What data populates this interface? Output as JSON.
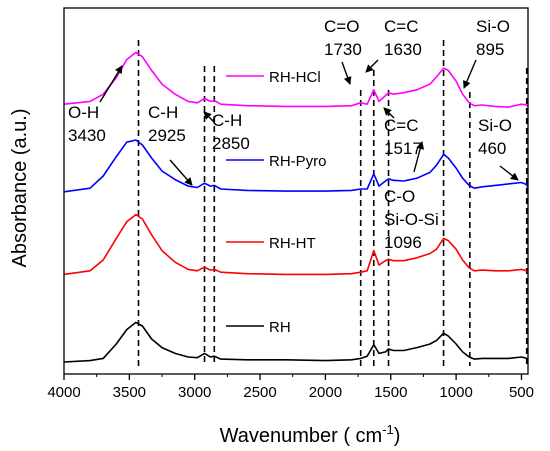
{
  "chart_data": {
    "type": "line",
    "xlabel": "Wavenumber ( cm",
    "xlabel_sup": "-1",
    "xlabel_end": ")",
    "ylabel": "Absorbance (a.u.)",
    "xlim": [
      4000,
      450
    ],
    "x_reversed": true,
    "xticks": [
      "4000",
      "3500",
      "3000",
      "2500",
      "2000",
      "1500",
      "1000",
      "500"
    ],
    "y_ticks_shown": false,
    "grid": false,
    "legend_placement": "inline labels next to each curve",
    "series": [
      {
        "name": "RH-HCl",
        "color": "#ff00ff",
        "offset": 3,
        "points": [
          [
            4000,
            0.08
          ],
          [
            3800,
            0.12
          ],
          [
            3700,
            0.22
          ],
          [
            3600,
            0.45
          ],
          [
            3520,
            0.7
          ],
          [
            3450,
            0.8
          ],
          [
            3400,
            0.74
          ],
          [
            3330,
            0.55
          ],
          [
            3250,
            0.36
          ],
          [
            3150,
            0.22
          ],
          [
            3050,
            0.12
          ],
          [
            2980,
            0.1
          ],
          [
            2925,
            0.16
          ],
          [
            2880,
            0.12
          ],
          [
            2850,
            0.13
          ],
          [
            2800,
            0.08
          ],
          [
            2600,
            0.06
          ],
          [
            2300,
            0.05
          ],
          [
            2000,
            0.05
          ],
          [
            1800,
            0.06
          ],
          [
            1730,
            0.1
          ],
          [
            1680,
            0.08
          ],
          [
            1630,
            0.28
          ],
          [
            1590,
            0.12
          ],
          [
            1540,
            0.2
          ],
          [
            1517,
            0.24
          ],
          [
            1480,
            0.22
          ],
          [
            1400,
            0.24
          ],
          [
            1300,
            0.28
          ],
          [
            1200,
            0.36
          ],
          [
            1150,
            0.46
          ],
          [
            1096,
            0.58
          ],
          [
            1060,
            0.55
          ],
          [
            1000,
            0.4
          ],
          [
            950,
            0.22
          ],
          [
            900,
            0.1
          ],
          [
            860,
            0.06
          ],
          [
            800,
            0.07
          ],
          [
            700,
            0.05
          ],
          [
            600,
            0.04
          ],
          [
            500,
            0.08
          ],
          [
            460,
            0.07
          ],
          [
            450,
            0.05
          ]
        ]
      },
      {
        "name": "RH-Pyro",
        "color": "#0000ff",
        "offset": 2,
        "points": [
          [
            4000,
            0.03
          ],
          [
            3800,
            0.08
          ],
          [
            3700,
            0.25
          ],
          [
            3600,
            0.52
          ],
          [
            3520,
            0.72
          ],
          [
            3450,
            0.75
          ],
          [
            3400,
            0.68
          ],
          [
            3330,
            0.5
          ],
          [
            3250,
            0.32
          ],
          [
            3150,
            0.2
          ],
          [
            3050,
            0.11
          ],
          [
            2980,
            0.09
          ],
          [
            2925,
            0.15
          ],
          [
            2880,
            0.11
          ],
          [
            2850,
            0.12
          ],
          [
            2800,
            0.07
          ],
          [
            2600,
            0.05
          ],
          [
            2300,
            0.04
          ],
          [
            2000,
            0.04
          ],
          [
            1800,
            0.05
          ],
          [
            1730,
            0.07
          ],
          [
            1680,
            0.07
          ],
          [
            1630,
            0.28
          ],
          [
            1590,
            0.11
          ],
          [
            1540,
            0.18
          ],
          [
            1517,
            0.21
          ],
          [
            1480,
            0.19
          ],
          [
            1400,
            0.18
          ],
          [
            1300,
            0.22
          ],
          [
            1200,
            0.3
          ],
          [
            1150,
            0.4
          ],
          [
            1096,
            0.55
          ],
          [
            1060,
            0.5
          ],
          [
            1000,
            0.36
          ],
          [
            950,
            0.22
          ],
          [
            900,
            0.12
          ],
          [
            860,
            0.08
          ],
          [
            800,
            0.1
          ],
          [
            700,
            0.12
          ],
          [
            600,
            0.14
          ],
          [
            500,
            0.16
          ],
          [
            460,
            0.13
          ],
          [
            450,
            0.08
          ]
        ]
      },
      {
        "name": "RH-HT",
        "color": "#ff0000",
        "offset": 1,
        "points": [
          [
            4000,
            0.05
          ],
          [
            3800,
            0.1
          ],
          [
            3700,
            0.25
          ],
          [
            3600,
            0.55
          ],
          [
            3520,
            0.78
          ],
          [
            3450,
            0.88
          ],
          [
            3400,
            0.82
          ],
          [
            3330,
            0.6
          ],
          [
            3250,
            0.38
          ],
          [
            3150,
            0.22
          ],
          [
            3050,
            0.12
          ],
          [
            2980,
            0.1
          ],
          [
            2925,
            0.15
          ],
          [
            2880,
            0.11
          ],
          [
            2850,
            0.12
          ],
          [
            2800,
            0.08
          ],
          [
            2600,
            0.06
          ],
          [
            2300,
            0.05
          ],
          [
            2000,
            0.05
          ],
          [
            1800,
            0.06
          ],
          [
            1730,
            0.08
          ],
          [
            1680,
            0.1
          ],
          [
            1630,
            0.38
          ],
          [
            1590,
            0.18
          ],
          [
            1540,
            0.24
          ],
          [
            1517,
            0.26
          ],
          [
            1480,
            0.24
          ],
          [
            1400,
            0.24
          ],
          [
            1300,
            0.28
          ],
          [
            1200,
            0.34
          ],
          [
            1150,
            0.4
          ],
          [
            1096,
            0.55
          ],
          [
            1060,
            0.52
          ],
          [
            1000,
            0.4
          ],
          [
            950,
            0.25
          ],
          [
            900,
            0.14
          ],
          [
            860,
            0.1
          ],
          [
            800,
            0.11
          ],
          [
            700,
            0.1
          ],
          [
            600,
            0.1
          ],
          [
            500,
            0.12
          ],
          [
            460,
            0.1
          ],
          [
            450,
            0.06
          ]
        ]
      },
      {
        "name": "RH",
        "color": "#000000",
        "offset": 0,
        "points": [
          [
            4000,
            0.0
          ],
          [
            3800,
            0.02
          ],
          [
            3700,
            0.05
          ],
          [
            3600,
            0.25
          ],
          [
            3520,
            0.45
          ],
          [
            3450,
            0.55
          ],
          [
            3400,
            0.5
          ],
          [
            3330,
            0.32
          ],
          [
            3250,
            0.2
          ],
          [
            3150,
            0.12
          ],
          [
            3050,
            0.07
          ],
          [
            2980,
            0.06
          ],
          [
            2925,
            0.12
          ],
          [
            2880,
            0.07
          ],
          [
            2850,
            0.08
          ],
          [
            2800,
            0.04
          ],
          [
            2600,
            0.03
          ],
          [
            2300,
            0.03
          ],
          [
            2000,
            0.02
          ],
          [
            1800,
            0.03
          ],
          [
            1730,
            0.05
          ],
          [
            1680,
            0.08
          ],
          [
            1630,
            0.24
          ],
          [
            1590,
            0.12
          ],
          [
            1540,
            0.14
          ],
          [
            1517,
            0.18
          ],
          [
            1480,
            0.16
          ],
          [
            1400,
            0.16
          ],
          [
            1300,
            0.2
          ],
          [
            1200,
            0.25
          ],
          [
            1150,
            0.3
          ],
          [
            1096,
            0.4
          ],
          [
            1060,
            0.36
          ],
          [
            1000,
            0.25
          ],
          [
            950,
            0.14
          ],
          [
            900,
            0.07
          ],
          [
            860,
            0.04
          ],
          [
            800,
            0.05
          ],
          [
            700,
            0.05
          ],
          [
            600,
            0.05
          ],
          [
            500,
            0.07
          ],
          [
            460,
            0.05
          ],
          [
            450,
            0.02
          ]
        ]
      }
    ],
    "reference_lines": [
      3430,
      2925,
      2850,
      1730,
      1630,
      1517,
      1096,
      895,
      460
    ],
    "annotations": [
      {
        "id": "oh",
        "lines": [
          "O-H",
          "3430"
        ],
        "target": 3430
      },
      {
        "id": "ch1",
        "lines": [
          "C-H",
          "2925"
        ],
        "target": 2925
      },
      {
        "id": "ch2",
        "lines": [
          "C-H",
          "2850"
        ],
        "target": 2850
      },
      {
        "id": "co",
        "lines": [
          "C=O",
          "1730"
        ],
        "target": 1730
      },
      {
        "id": "cc1",
        "lines": [
          "C=C",
          "1630"
        ],
        "target": 1630
      },
      {
        "id": "cc2",
        "lines": [
          "C=C",
          "1517"
        ],
        "target": 1517
      },
      {
        "id": "sio1",
        "lines": [
          "Si-O",
          "895"
        ],
        "target": 895
      },
      {
        "id": "sio2",
        "lines": [
          "Si-O",
          "460"
        ],
        "target": 460
      },
      {
        "id": "siosi",
        "lines": [
          "C-O",
          "Si-O-Si",
          "1096"
        ],
        "target": 1096
      }
    ]
  }
}
